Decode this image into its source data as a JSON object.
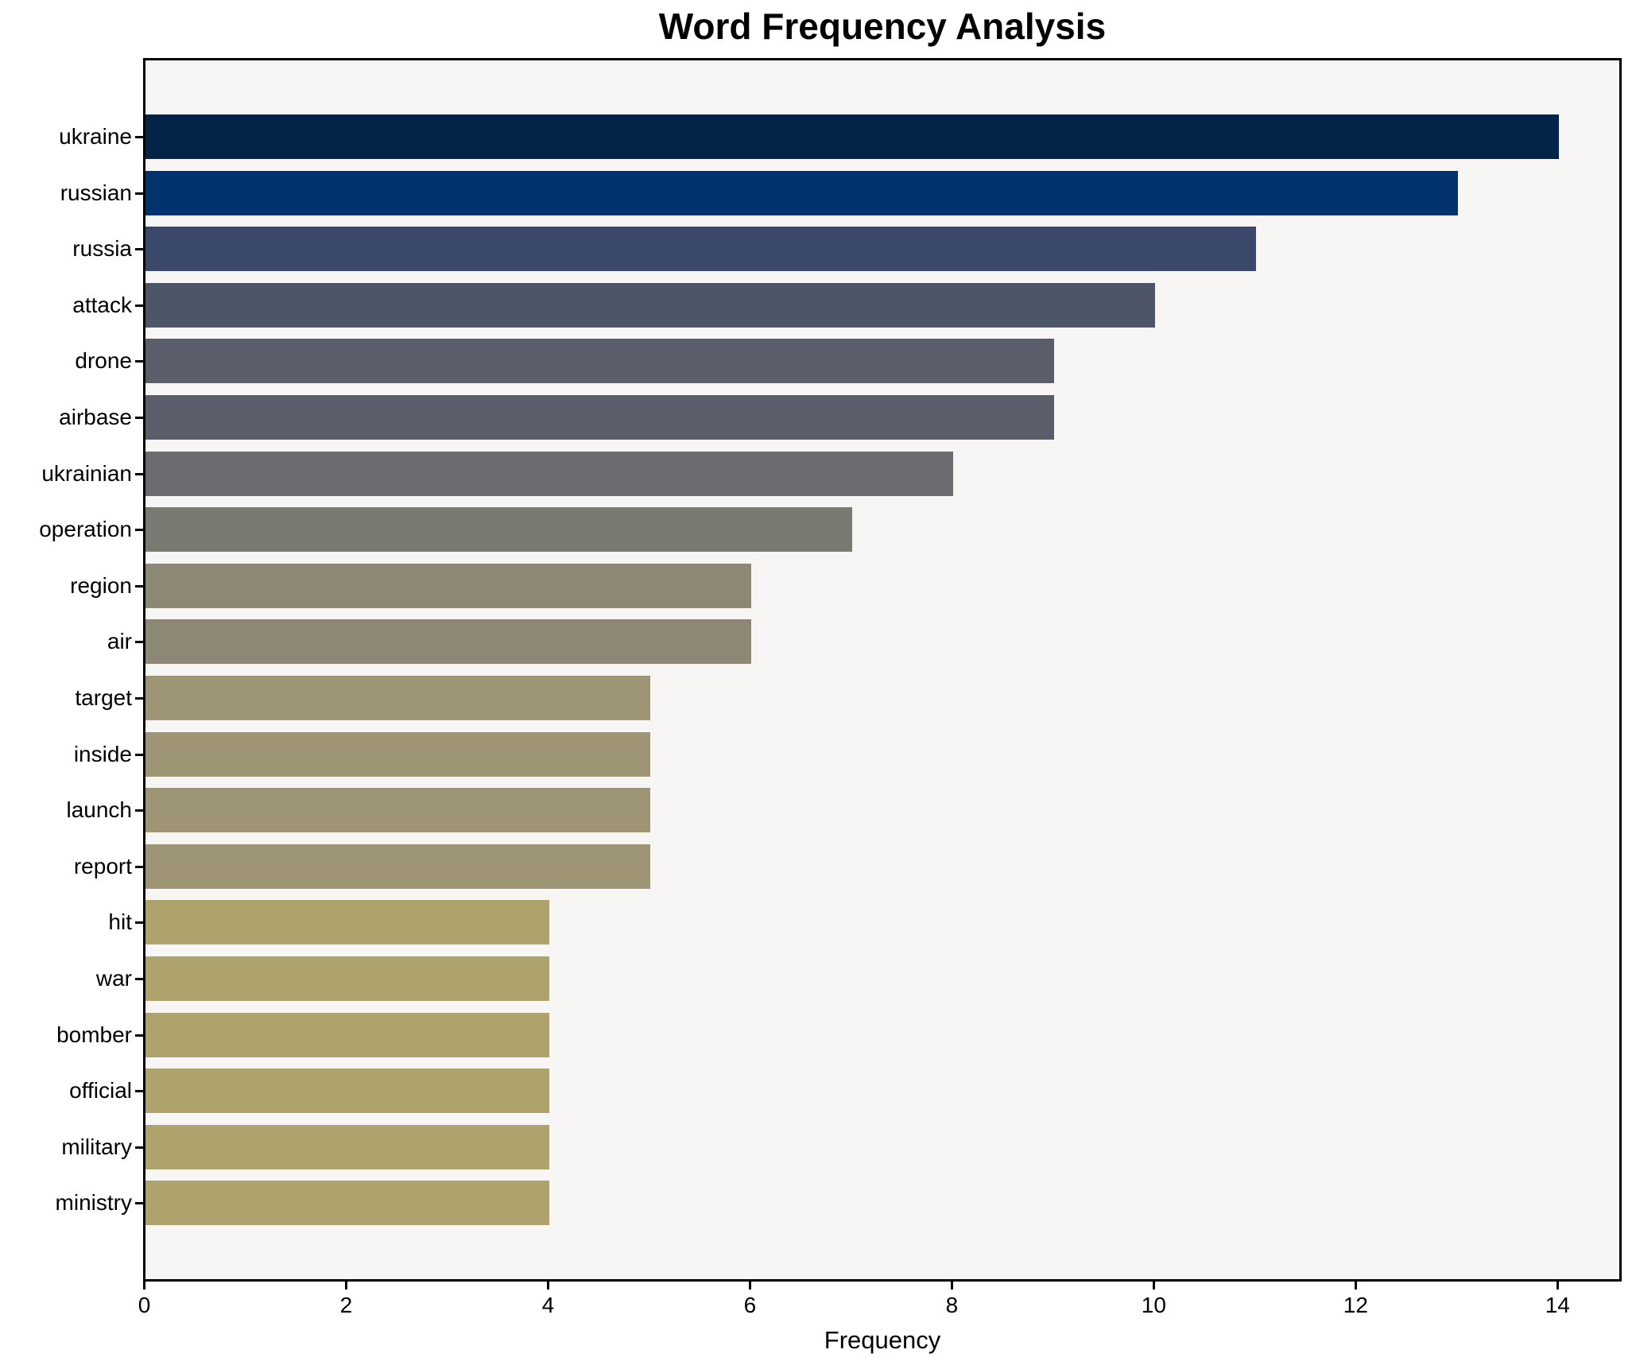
{
  "title": "Word Frequency Analysis",
  "chart_data": {
    "type": "bar",
    "orientation": "horizontal",
    "title": "Word Frequency Analysis",
    "xlabel": "Frequency",
    "ylabel": "",
    "grid": false,
    "legend": null,
    "xlim": [
      0,
      14.6
    ],
    "xticks": [
      0,
      2,
      4,
      6,
      8,
      10,
      12,
      14
    ],
    "categories": [
      "ukraine",
      "russian",
      "russia",
      "attack",
      "drone",
      "airbase",
      "ukrainian",
      "operation",
      "region",
      "air",
      "target",
      "inside",
      "launch",
      "report",
      "hit",
      "war",
      "bomber",
      "official",
      "military",
      "ministry"
    ],
    "values": [
      14,
      13,
      11,
      10,
      9,
      9,
      8,
      7,
      6,
      6,
      5,
      5,
      5,
      5,
      4,
      4,
      4,
      4,
      4,
      4
    ],
    "bar_colors": [
      "#032348",
      "#03336e",
      "#3a486c",
      "#4d5569",
      "#5a5e6b",
      "#5a5e6b",
      "#6c6c70",
      "#7b7a72",
      "#8d8876",
      "#8d8876",
      "#9d9574",
      "#9d9574",
      "#9d9574",
      "#9d9574",
      "#aea36c",
      "#aea36c",
      "#aea36c",
      "#aea36c",
      "#aea36c",
      "#aea36c"
    ],
    "colors": {
      "plot_background": "#f7f6f5",
      "figure_background": "#ffffff",
      "spine": "#000000",
      "text": "#000000"
    }
  }
}
